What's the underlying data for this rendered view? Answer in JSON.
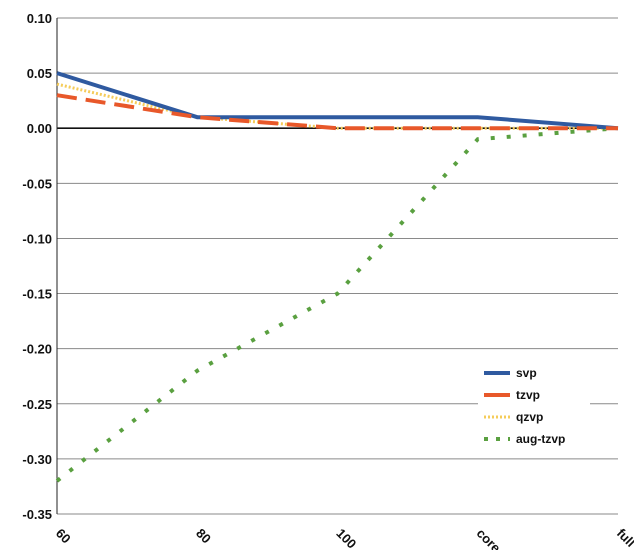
{
  "chart_data": {
    "type": "line",
    "title": "",
    "xlabel": "",
    "ylabel": "",
    "categories": [
      "60",
      "80",
      "100",
      "core",
      "full"
    ],
    "ylim": [
      -0.35,
      0.1
    ],
    "yticks": [
      "0.10",
      "0.05",
      "0.00",
      "-0.05",
      "-0.10",
      "-0.15",
      "-0.20",
      "-0.25",
      "-0.30",
      "-0.35"
    ],
    "ytick_values": [
      0.1,
      0.05,
      0.0,
      -0.05,
      -0.1,
      -0.15,
      -0.2,
      -0.25,
      -0.3,
      -0.35
    ],
    "grid": true,
    "legend_position": "right",
    "series": [
      {
        "name": "svp",
        "values": [
          0.05,
          0.01,
          0.01,
          0.01,
          0.0
        ],
        "color": "#2f5aa0",
        "style": "solid"
      },
      {
        "name": "tzvp",
        "values": [
          0.03,
          0.01,
          0.0,
          0.0,
          0.0
        ],
        "color": "#e8582a",
        "style": "dashed"
      },
      {
        "name": "qzvp",
        "values": [
          0.04,
          0.01,
          0.0,
          0.0,
          0.0
        ],
        "color": "#f5cc5a",
        "style": "dotted-fine"
      },
      {
        "name": "aug-tzvp",
        "values": [
          -0.32,
          -0.22,
          -0.15,
          -0.01,
          0.0
        ],
        "color": "#5aa040",
        "style": "dotted"
      }
    ]
  }
}
